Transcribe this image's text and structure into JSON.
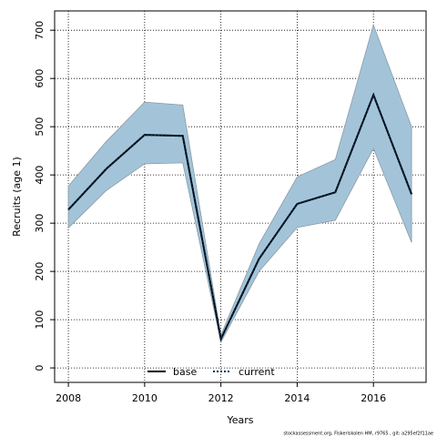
{
  "chart_data": {
    "type": "line",
    "x": [
      2008,
      2009,
      2010,
      2011,
      2012,
      2013,
      2014,
      2015,
      2016,
      2017
    ],
    "band": {
      "color": "#a3c4d8",
      "lower": [
        290,
        368,
        423,
        425,
        53,
        200,
        291,
        306,
        455,
        260
      ],
      "upper": [
        377,
        470,
        551,
        545,
        68,
        257,
        396,
        432,
        711,
        500
      ]
    },
    "series": [
      {
        "name": "base",
        "color": "#000000",
        "dash": false,
        "values": [
          328,
          413,
          483,
          481,
          60,
          226,
          340,
          364,
          566,
          360
        ]
      },
      {
        "name": "current",
        "color": "#0a2a4a",
        "dash": true,
        "values": [
          328,
          413,
          483,
          481,
          60,
          226,
          340,
          364,
          566,
          360
        ]
      }
    ],
    "xlim": [
      2007.64,
      2017.38
    ],
    "ylim": [
      -30,
      740
    ],
    "xticks": [
      2008,
      2010,
      2012,
      2014,
      2016
    ],
    "yticks": [
      0,
      100,
      200,
      300,
      400,
      500,
      600,
      700
    ],
    "xlabel": "Years",
    "ylabel": "Recruits (age 1)",
    "grid": true,
    "legend": "bottom",
    "footnote": "stockassessment.org, Fiskeriskolen HM, r9765 , git: a295ef2f11ae"
  }
}
